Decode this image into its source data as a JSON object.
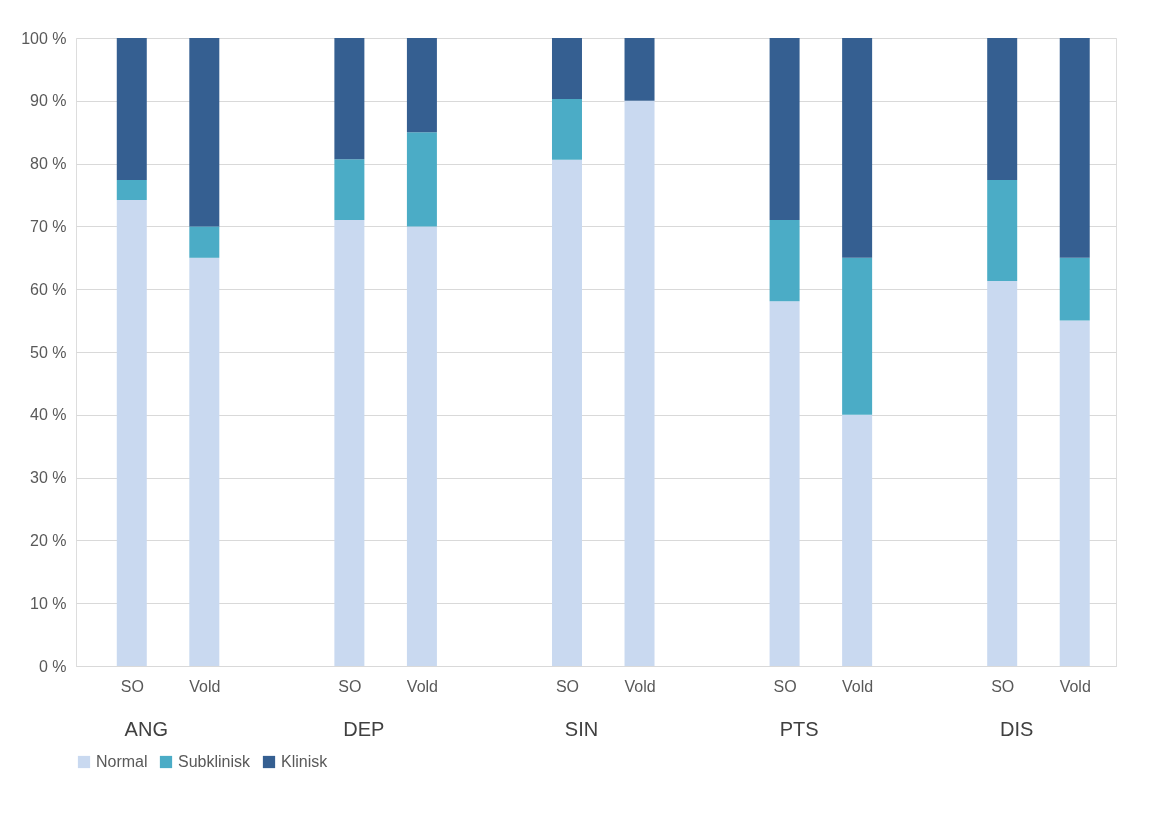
{
  "chart_data": {
    "type": "bar",
    "stacked": true,
    "categories": [
      "SO",
      "Vold",
      "SO",
      "Vold",
      "SO",
      "Vold",
      "SO",
      "Vold",
      "SO",
      "Vold"
    ],
    "annotations": [
      "ANG",
      "DEP",
      "SIN",
      "PTS",
      "DIS"
    ],
    "series": [
      {
        "name": "Normal",
        "color": "#c9d9f0",
        "values": [
          74.2,
          65,
          71,
          70,
          80.6,
          90,
          58.1,
          40,
          61.3,
          55
        ]
      },
      {
        "name": "Subklinisk",
        "color": "#4bacc6",
        "values": [
          3.2,
          5,
          9.7,
          15,
          9.7,
          0,
          12.9,
          25,
          16.1,
          10
        ]
      },
      {
        "name": "Klinisk",
        "color": "#355f91",
        "values": [
          22.6,
          30,
          19.3,
          15,
          9.7,
          10,
          29,
          35,
          22.6,
          35
        ]
      }
    ],
    "ylim": [
      0,
      100
    ],
    "yticks": [
      {
        "value": 0,
        "label": "0 %"
      },
      {
        "value": 10,
        "label": "10 %"
      },
      {
        "value": 20,
        "label": "20 %"
      },
      {
        "value": 30,
        "label": "30 %"
      },
      {
        "value": 40,
        "label": "40 %"
      },
      {
        "value": 50,
        "label": "50 %"
      },
      {
        "value": 60,
        "label": "60 %"
      },
      {
        "value": 70,
        "label": "70 %"
      },
      {
        "value": 80,
        "label": "80 %"
      },
      {
        "value": 90,
        "label": "90 %"
      },
      {
        "value": 100,
        "label": "100 %"
      }
    ],
    "grid": "y",
    "legend": "bottom"
  }
}
